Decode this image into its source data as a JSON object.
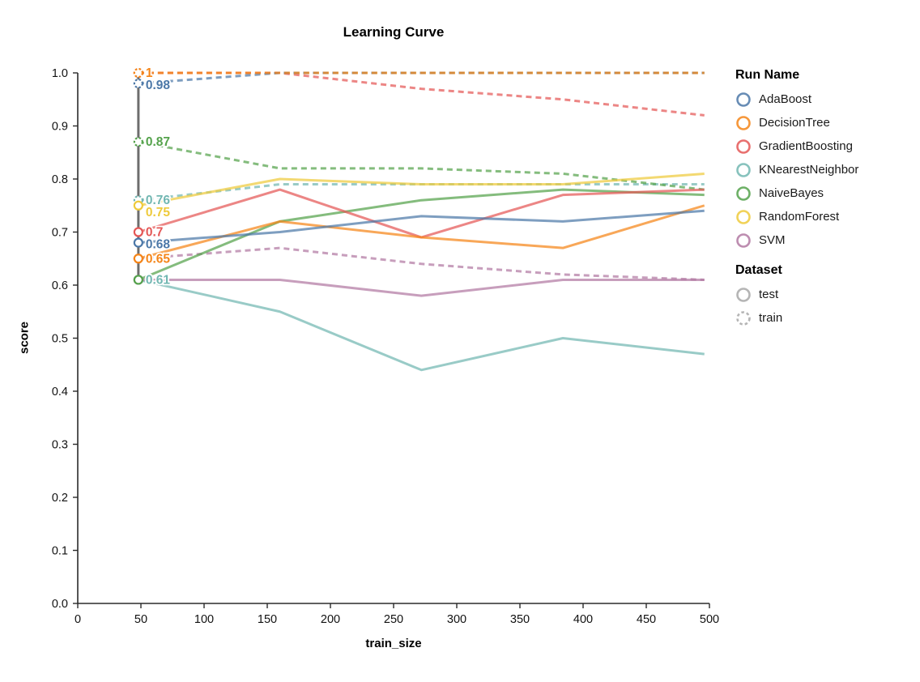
{
  "chart_data": {
    "type": "line",
    "title": "Learning Curve",
    "xlabel": "train_size",
    "ylabel": "score",
    "xlim": [
      0,
      500
    ],
    "ylim": [
      0.0,
      1.0
    ],
    "grid": false,
    "legend_position": "right",
    "x_ticks": [
      0,
      50,
      100,
      150,
      200,
      250,
      300,
      350,
      400,
      450,
      500
    ],
    "x_tick_labels": [
      "0",
      "50",
      "100",
      "150",
      "200",
      "250",
      "300",
      "350",
      "400",
      "450",
      "500"
    ],
    "y_ticks": [
      0,
      0.1,
      0.2,
      0.3,
      0.4,
      0.5,
      0.6,
      0.7,
      0.8,
      0.9,
      1.0
    ],
    "y_tick_labels": [
      "0.0",
      "0.1",
      "0.2",
      "0.3",
      "0.4",
      "0.5",
      "0.6",
      "0.7",
      "0.8",
      "0.9",
      "1.0"
    ],
    "x": [
      48,
      160,
      272,
      384,
      496
    ],
    "rule_x": 48,
    "rule_color": "#6e6e6e",
    "series": [
      {
        "name": "RandomForest",
        "dataset": "train",
        "color": "#eeca3b",
        "dash": true,
        "values": [
          1.0,
          1.0,
          1.0,
          1.0,
          1.0
        ],
        "point_label": ""
      },
      {
        "name": "GradientBoosting",
        "dataset": "train",
        "color": "#e45756",
        "dash": true,
        "values": [
          1.0,
          1.0,
          0.97,
          0.95,
          0.92
        ],
        "point_label": ""
      },
      {
        "name": "SVM",
        "dataset": "train",
        "color": "#b279a2",
        "dash": true,
        "values": [
          0.65,
          0.67,
          0.64,
          0.62,
          0.61
        ],
        "point_label": ""
      },
      {
        "name": "KNearestNeighbor",
        "dataset": "train",
        "color": "#72b7b2",
        "dash": true,
        "values": [
          0.76,
          0.79,
          0.79,
          0.79,
          0.79
        ],
        "point_label": "0.76"
      },
      {
        "name": "NaiveBayes",
        "dataset": "train",
        "color": "#54a24b",
        "dash": true,
        "values": [
          0.87,
          0.82,
          0.82,
          0.81,
          0.78
        ],
        "point_label": "0.87"
      },
      {
        "name": "AdaBoost",
        "dataset": "train",
        "color": "#4c78a8",
        "dash": true,
        "values": [
          0.98,
          1.0,
          1.0,
          1.0,
          1.0
        ],
        "point_label": "0.98"
      },
      {
        "name": "DecisionTree",
        "dataset": "train",
        "color": "#f58518",
        "dash": true,
        "values": [
          1.0,
          1.0,
          1.0,
          1.0,
          1.0
        ],
        "point_label": "1"
      },
      {
        "name": "KNearestNeighbor",
        "dataset": "test",
        "color": "#72b7b2",
        "dash": false,
        "values": [
          0.61,
          0.55,
          0.44,
          0.5,
          0.47
        ],
        "point_label": "0.61"
      },
      {
        "name": "SVM",
        "dataset": "test",
        "color": "#b279a2",
        "dash": false,
        "values": [
          0.61,
          0.61,
          0.58,
          0.61,
          0.61
        ],
        "point_label": ""
      },
      {
        "name": "NaiveBayes",
        "dataset": "test",
        "color": "#54a24b",
        "dash": false,
        "values": [
          0.61,
          0.72,
          0.76,
          0.78,
          0.77
        ],
        "point_label": ""
      },
      {
        "name": "GradientBoosting",
        "dataset": "test",
        "color": "#e45756",
        "dash": false,
        "values": [
          0.7,
          0.78,
          0.69,
          0.77,
          0.78
        ],
        "point_label": "0.7"
      },
      {
        "name": "DecisionTree",
        "dataset": "test",
        "color": "#f58518",
        "dash": false,
        "values": [
          0.65,
          0.72,
          0.69,
          0.67,
          0.75
        ],
        "point_label": "0.65"
      },
      {
        "name": "AdaBoost",
        "dataset": "test",
        "color": "#4c78a8",
        "dash": false,
        "values": [
          0.68,
          0.7,
          0.73,
          0.72,
          0.74
        ],
        "point_label": "0.68"
      },
      {
        "name": "RandomForest",
        "dataset": "test",
        "color": "#eeca3b",
        "dash": false,
        "values": [
          0.75,
          0.8,
          0.79,
          0.79,
          0.81
        ],
        "point_label": "0.75"
      }
    ]
  },
  "legend": {
    "run_name_title": "Run Name",
    "dataset_title": "Dataset",
    "runs": [
      {
        "label": "AdaBoost",
        "color": "#4c78a8"
      },
      {
        "label": "DecisionTree",
        "color": "#f58518"
      },
      {
        "label": "GradientBoosting",
        "color": "#e45756"
      },
      {
        "label": "KNearestNeighbor",
        "color": "#72b7b2"
      },
      {
        "label": "NaiveBayes",
        "color": "#54a24b"
      },
      {
        "label": "RandomForest",
        "color": "#eeca3b"
      },
      {
        "label": "SVM",
        "color": "#b279a2"
      }
    ],
    "datasets": [
      {
        "label": "test",
        "dash": false
      },
      {
        "label": "train",
        "dash": true
      }
    ],
    "dataset_symbol_color": "#b5b5b5"
  }
}
